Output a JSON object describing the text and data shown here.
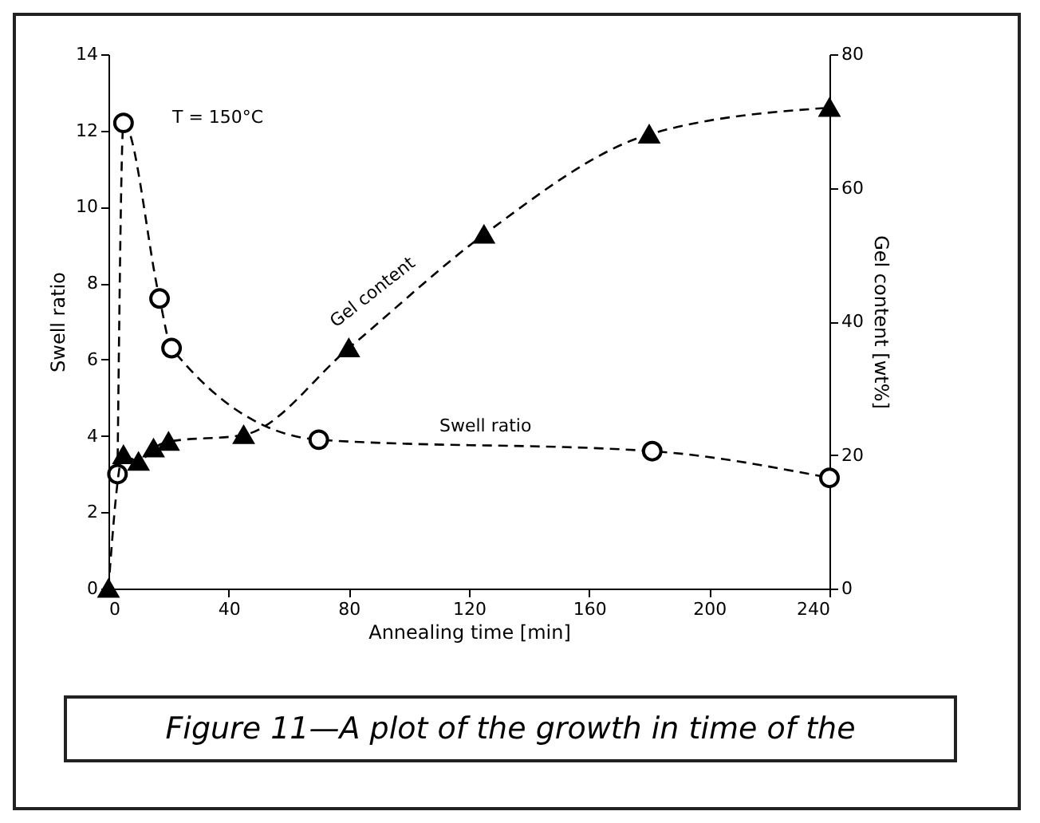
{
  "chart_data": {
    "type": "line",
    "xlabel": "Annealing time [min]",
    "ylabel": "Swell ratio",
    "y2label": "Gel content [wt%]",
    "xlim": [
      0,
      240
    ],
    "xticks": [
      0,
      40,
      80,
      120,
      160,
      200,
      240
    ],
    "ylim": [
      0,
      14
    ],
    "yticks": [
      0,
      2,
      4,
      6,
      8,
      10,
      12,
      14
    ],
    "y2lim": [
      0,
      80
    ],
    "y2ticks": [
      0,
      20,
      40,
      60,
      80
    ],
    "grid": false,
    "legend": false,
    "line_style": "dashed",
    "series": [
      {
        "name": "Swell ratio",
        "color": "#000000",
        "marker": "circle",
        "x": [
          3,
          5,
          17,
          21,
          70,
          181,
          240
        ],
        "values": [
          3.0,
          12.2,
          7.6,
          6.3,
          3.9,
          3.6,
          2.9
        ]
      },
      {
        "name": "Gel content",
        "color": "#000000",
        "marker": "triangle",
        "axis": "y2",
        "x": [
          0,
          5,
          10,
          15,
          20,
          45,
          80,
          125,
          180,
          240
        ],
        "values": [
          0,
          20,
          19,
          21,
          22,
          23,
          36,
          53,
          68,
          72
        ]
      }
    ],
    "annotations": [
      "T = 150°C",
      "Figure 11—A plot of the growth in time of the"
    ]
  }
}
